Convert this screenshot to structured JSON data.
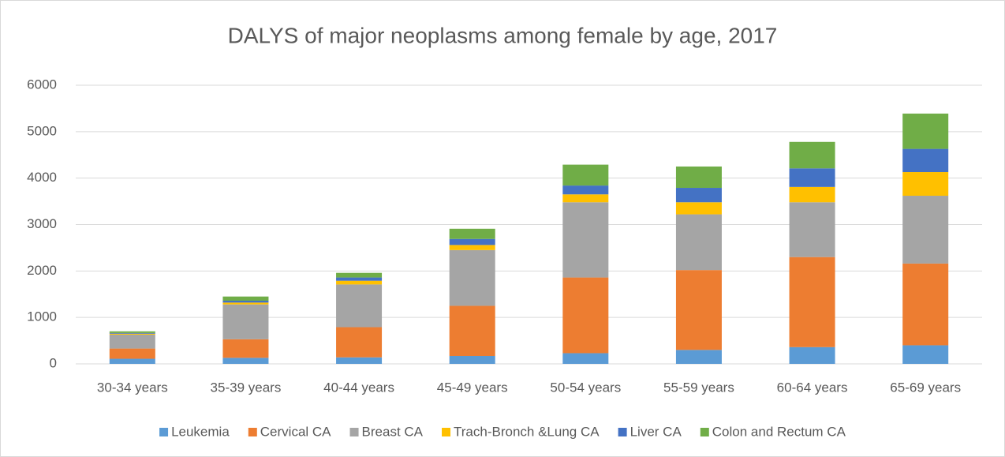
{
  "chart_data": {
    "type": "stacked_bar",
    "title": "DALYS of major neoplasms among female by age, 2017",
    "categories": [
      "30-34 years",
      "35-39 years",
      "40-44 years",
      "45-49 years",
      "50-54 years",
      "55-59 years",
      "60-64 years",
      "65-69 years"
    ],
    "series": [
      {
        "name": "Leukemia",
        "color": "#5b9bd5",
        "values": [
          110,
          130,
          140,
          170,
          230,
          300,
          360,
          400
        ]
      },
      {
        "name": "Cervical CA",
        "color": "#ed7d31",
        "values": [
          220,
          400,
          650,
          1080,
          1630,
          1720,
          1940,
          1760
        ]
      },
      {
        "name": "Breast CA",
        "color": "#a5a5a5",
        "values": [
          300,
          750,
          920,
          1200,
          1620,
          1200,
          1180,
          1460
        ]
      },
      {
        "name": "Trach-Bronch &Lung CA",
        "color": "#ffc000",
        "values": [
          20,
          40,
          80,
          110,
          170,
          260,
          330,
          510
        ]
      },
      {
        "name": "Liver CA",
        "color": "#4472c4",
        "values": [
          15,
          40,
          70,
          130,
          190,
          310,
          400,
          500
        ]
      },
      {
        "name": "Colon and Rectum CA",
        "color": "#70ad47",
        "values": [
          35,
          90,
          100,
          220,
          450,
          460,
          570,
          760
        ]
      }
    ],
    "ylim": [
      0,
      6000
    ],
    "yticks": [
      0,
      1000,
      2000,
      3000,
      4000,
      5000,
      6000
    ],
    "grid": true,
    "legend": "bottom"
  }
}
